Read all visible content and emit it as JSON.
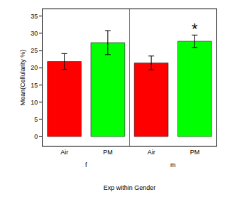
{
  "chart_data": {
    "type": "bar",
    "x_label": "Exp within Gender",
    "y_label": "Mean(Cellularity %)",
    "categories": [
      "Air",
      "PM",
      "Air",
      "PM"
    ],
    "groups": [
      "f",
      "f",
      "m",
      "m"
    ],
    "values": [
      21.8,
      27.3,
      21.4,
      27.7
    ],
    "errors": [
      2.3,
      3.5,
      2.0,
      1.8
    ],
    "colors": [
      "#ff0000",
      "#00ff00",
      "#ff0000",
      "#00ff00"
    ],
    "ylim": [
      -2.7,
      37
    ],
    "yticks": [
      0,
      5,
      10,
      15,
      20,
      25,
      30,
      35
    ],
    "grid": false,
    "annotations": [
      {
        "text": "*",
        "group": "m",
        "category": "PM",
        "y": 31.3
      }
    ]
  }
}
